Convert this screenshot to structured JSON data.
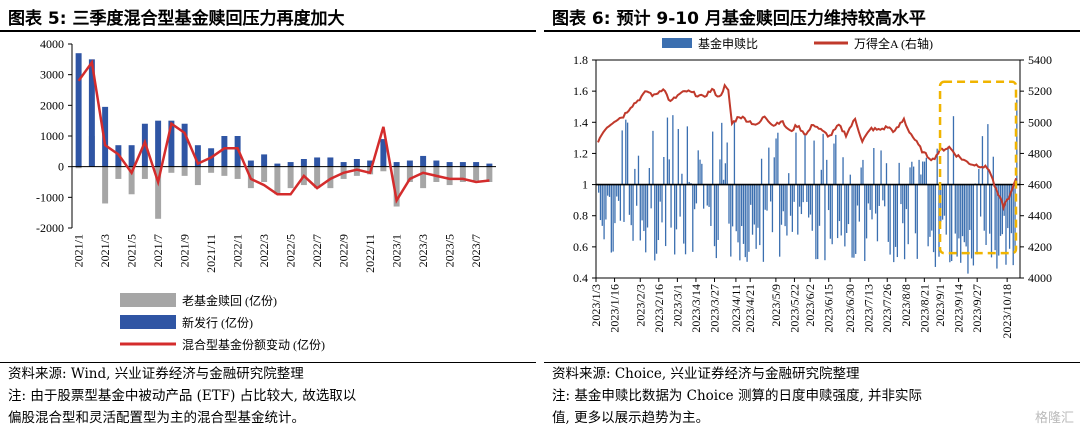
{
  "left": {
    "title": "图表 5:  三季度混合型基金赎回压力再度加大",
    "source": "资料来源:  Wind, 兴业证券经济与金融研究院整理",
    "note_line1": "注:  由于股票型基金中被动产品 (ETF) 占比较大, 故选取以",
    "note_line2": "偏股混合型和灵活配置型为主的混合型基金统计。"
  },
  "right": {
    "title": "图表 6:  预计 9-10 月基金赎回压力维持较高水平",
    "source": "资料来源:  Choice, 兴业证券经济与金融研究院整理",
    "note_line1": "注:  基金申赎比数据为 Choice 测算的日度申赎强度, 并非实际",
    "note_line2": "值, 更多以展示趋势为主。"
  },
  "watermark": "格隆汇",
  "colors": {
    "grey": "#a6a6a6",
    "blue": "#2f55a4",
    "red": "#d42c2c",
    "bar_blue": "#3b6fb0",
    "highlight": "#f0b400"
  },
  "chart_data": [
    {
      "type": "bar",
      "categories": [
        "2021/1",
        "2021/2",
        "2021/3",
        "2021/4",
        "2021/5",
        "2021/6",
        "2021/7",
        "2021/8",
        "2021/9",
        "2021/10",
        "2021/11",
        "2021/12",
        "2022/1",
        "2022/2",
        "2022/3",
        "2022/4",
        "2022/5",
        "2022/6",
        "2022/7",
        "2022/8",
        "2022/9",
        "2022/10",
        "2022/11",
        "2022/12",
        "2023/1",
        "2023/2",
        "2023/3",
        "2023/4",
        "2023/5",
        "2023/6",
        "2023/7",
        "2023/8"
      ],
      "tick_labels": [
        "2021/1",
        "2021/3",
        "2021/5",
        "2021/7",
        "2021/9",
        "2021/11",
        "2022/1",
        "2022/3",
        "2022/5",
        "2022/7",
        "2022/9",
        "2022/11",
        "2023/1",
        "2023/3",
        "2023/5",
        "2023/7"
      ],
      "series": [
        {
          "name": "老基金赎回 (亿份)",
          "kind": "bar",
          "color": "#a6a6a6",
          "values": [
            -50,
            1000,
            -1200,
            -400,
            -900,
            -400,
            -1700,
            -200,
            -300,
            -600,
            -200,
            -300,
            -400,
            -700,
            -500,
            -900,
            -700,
            -600,
            -700,
            -700,
            -400,
            -300,
            -250,
            -150,
            -1300,
            -500,
            -700,
            -500,
            -600,
            -500,
            -450,
            -500
          ]
        },
        {
          "name": "新发行 (亿份)",
          "kind": "bar",
          "color": "#2f55a4",
          "values": [
            3700,
            3500,
            1950,
            700,
            700,
            1400,
            1500,
            1500,
            1400,
            700,
            600,
            1000,
            1000,
            200,
            400,
            100,
            150,
            250,
            300,
            300,
            150,
            250,
            200,
            900,
            150,
            200,
            350,
            200,
            150,
            150,
            150,
            100
          ]
        },
        {
          "name": "混合型基金份额变动 (亿份)",
          "kind": "line",
          "color": "#d42c2c",
          "values": [
            2800,
            3400,
            700,
            400,
            -200,
            800,
            -500,
            1400,
            1100,
            100,
            300,
            600,
            600,
            -400,
            -600,
            -900,
            -900,
            -300,
            -700,
            -400,
            -200,
            -100,
            -200,
            1300,
            -1100,
            -400,
            -200,
            -300,
            -400,
            -400,
            -500,
            -450
          ]
        }
      ],
      "ylim": [
        -2000,
        4000
      ],
      "yticks": [
        -2000,
        -1000,
        0,
        1000,
        2000,
        3000,
        4000
      ],
      "legend_position": "bottom"
    },
    {
      "type": "bar",
      "series": [
        {
          "name": "基金申赎比",
          "kind": "bar",
          "axis": "left",
          "color": "#3b6fb0"
        },
        {
          "name": "万得全A (右轴)",
          "kind": "line",
          "axis": "right",
          "color": "#c0392b"
        }
      ],
      "x_start": "2023/1/3",
      "x_end": "2023/10/27",
      "tick_labels": [
        "2023/1/3",
        "2023/1/16",
        "2023/2/3",
        "2023/2/16",
        "2023/3/1",
        "2023/3/14",
        "2023/3/27",
        "2023/4/11",
        "2023/4/21",
        "2023/5/9",
        "2023/5/22",
        "2023/6/2",
        "2023/6/15",
        "2023/6/30",
        "2023/7/13",
        "2023/7/26",
        "2023/8/8",
        "2023/8/21",
        "2023/9/1",
        "2023/9/14",
        "2023/9/27",
        "2023/10/18"
      ],
      "ylim_left": [
        0.4,
        1.8
      ],
      "yticks_left": [
        0.4,
        0.6,
        0.8,
        1,
        1.2,
        1.4,
        1.6,
        1.8
      ],
      "ylim_right": [
        4000,
        5400
      ],
      "yticks_right": [
        4000,
        4200,
        4400,
        4600,
        4800,
        5000,
        5200,
        5400
      ],
      "bar_baseline": 1,
      "wind_all_a_anchors": [
        [
          0,
          4880
        ],
        [
          4,
          4960
        ],
        [
          9,
          5010
        ],
        [
          14,
          5040
        ],
        [
          18,
          5100
        ],
        [
          22,
          5140
        ],
        [
          27,
          5200
        ],
        [
          31,
          5170
        ],
        [
          36,
          5220
        ],
        [
          40,
          5130
        ],
        [
          45,
          5180
        ],
        [
          49,
          5200
        ],
        [
          54,
          5180
        ],
        [
          58,
          5160
        ],
        [
          63,
          5210
        ],
        [
          67,
          5160
        ],
        [
          70,
          5230
        ],
        [
          72,
          5200
        ],
        [
          74,
          4990
        ],
        [
          78,
          5040
        ],
        [
          83,
          5010
        ],
        [
          88,
          4980
        ],
        [
          92,
          5040
        ],
        [
          97,
          4980
        ],
        [
          101,
          5010
        ],
        [
          106,
          4940
        ],
        [
          110,
          4980
        ],
        [
          115,
          4920
        ],
        [
          119,
          4990
        ],
        [
          124,
          4940
        ],
        [
          128,
          4910
        ],
        [
          133,
          4980
        ],
        [
          137,
          4920
        ],
        [
          142,
          5020
        ],
        [
          146,
          4880
        ],
        [
          151,
          4960
        ],
        [
          155,
          4950
        ],
        [
          160,
          4970
        ],
        [
          164,
          4940
        ],
        [
          169,
          5020
        ],
        [
          171,
          4960
        ],
        [
          176,
          4870
        ],
        [
          180,
          4800
        ],
        [
          185,
          4760
        ],
        [
          189,
          4820
        ],
        [
          194,
          4840
        ],
        [
          198,
          4790
        ],
        [
          203,
          4750
        ],
        [
          207,
          4730
        ],
        [
          212,
          4720
        ],
        [
          216,
          4700
        ],
        [
          220,
          4560
        ],
        [
          224,
          4460
        ],
        [
          228,
          4540
        ],
        [
          231,
          4640
        ]
      ],
      "highlight_box": [
        "2023/9/1",
        "2023/10/27"
      ],
      "legend_position": "top"
    }
  ]
}
